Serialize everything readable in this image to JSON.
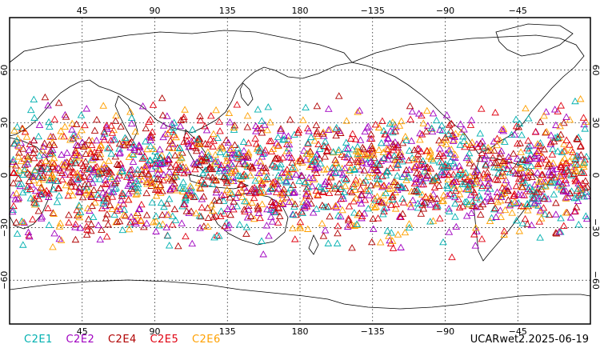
{
  "map": {
    "projection": "equirectangular",
    "central_longitude": 180,
    "lon_ticks": [
      45,
      90,
      135,
      180,
      -135,
      -90,
      -45
    ],
    "lat_ticks": [
      60,
      30,
      0,
      -30,
      -60
    ],
    "lon_tick_labels": [
      "45",
      "90",
      "135",
      "180",
      "−135",
      "−90",
      "−45"
    ],
    "lat_tick_labels": [
      "60",
      "30",
      "0",
      "−30",
      "−60"
    ],
    "grid": "dotted",
    "observation_band_latitude": [
      -50,
      50
    ],
    "marker": "open-triangle",
    "series": [
      {
        "name": "C2E1",
        "color": "#00b0b0"
      },
      {
        "name": "C2E2",
        "color": "#a000c0"
      },
      {
        "name": "C2E4",
        "color": "#b00000"
      },
      {
        "name": "C2E5",
        "color": "#e00010"
      },
      {
        "name": "C2E6",
        "color": "#ffa000"
      }
    ]
  },
  "legend": {
    "labels": [
      "C2E1",
      "C2E2",
      "C2E4",
      "C2E5",
      "C2E6"
    ]
  },
  "product_stamp": "UCARwet2.2025-06-19"
}
